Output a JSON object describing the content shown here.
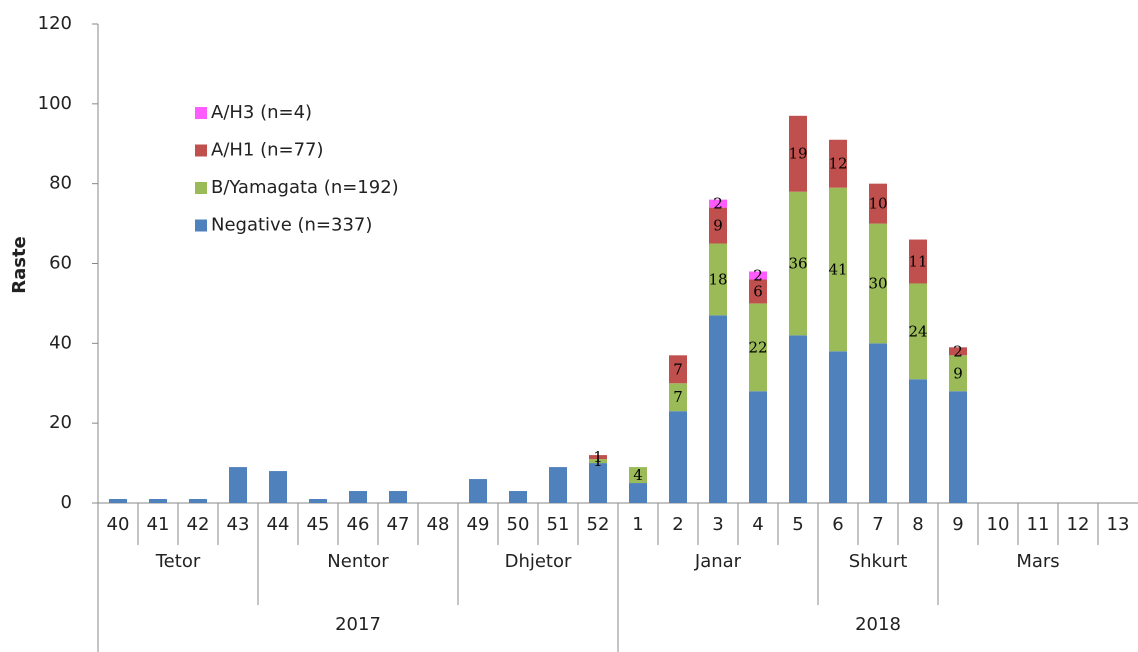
{
  "chart_data": {
    "type": "stacked_bar",
    "y_label": "Raste",
    "categories": [
      "40",
      "41",
      "42",
      "43",
      "44",
      "45",
      "46",
      "47",
      "48",
      "49",
      "50",
      "51",
      "52",
      "1",
      "2",
      "3",
      "4",
      "5",
      "6",
      "7",
      "8",
      "9",
      "10",
      "11",
      "12",
      "13"
    ],
    "months": [
      {
        "label": "Tetor",
        "count": 4
      },
      {
        "label": "Nentor",
        "count": 5
      },
      {
        "label": "Dhjetor",
        "count": 4
      },
      {
        "label": "Janar",
        "count": 5
      },
      {
        "label": "Shkurt",
        "count": 3
      },
      {
        "label": "Mars",
        "count": 5
      }
    ],
    "years": [
      {
        "label": "2017",
        "count": 13
      },
      {
        "label": "2018",
        "count": 13
      }
    ],
    "series": [
      {
        "name": "Negative (n=337)",
        "color": "#4f81bd",
        "data_labels": false,
        "values": [
          1,
          1,
          1,
          9,
          8,
          1,
          3,
          3,
          0,
          6,
          3,
          9,
          10,
          5,
          23,
          47,
          28,
          42,
          38,
          40,
          31,
          28,
          0,
          0,
          0,
          0
        ]
      },
      {
        "name": "B/Yamagata (n=192)",
        "color": "#9bbb59",
        "data_labels": true,
        "values": [
          null,
          null,
          null,
          null,
          null,
          null,
          null,
          null,
          null,
          null,
          null,
          null,
          1,
          4,
          7,
          18,
          22,
          36,
          41,
          30,
          24,
          9,
          null,
          null,
          null,
          null
        ]
      },
      {
        "name": "A/H1 (n=77)",
        "color": "#c0504d",
        "data_labels": true,
        "values": [
          null,
          null,
          null,
          null,
          null,
          null,
          null,
          null,
          null,
          null,
          null,
          null,
          1,
          null,
          7,
          9,
          6,
          19,
          12,
          10,
          11,
          2,
          null,
          null,
          null,
          null
        ]
      },
      {
        "name": "A/H3 (n=4)",
        "color": "#ff5cff",
        "data_labels": true,
        "values": [
          null,
          null,
          null,
          null,
          null,
          null,
          null,
          null,
          null,
          null,
          null,
          null,
          null,
          null,
          null,
          2,
          2,
          null,
          null,
          null,
          null,
          null,
          null,
          null,
          null,
          null
        ]
      }
    ],
    "ylim": [
      0,
      120
    ],
    "yticks": [
      0,
      20,
      40,
      60,
      80,
      100,
      120
    ],
    "legend": "upper left",
    "grid": false
  }
}
